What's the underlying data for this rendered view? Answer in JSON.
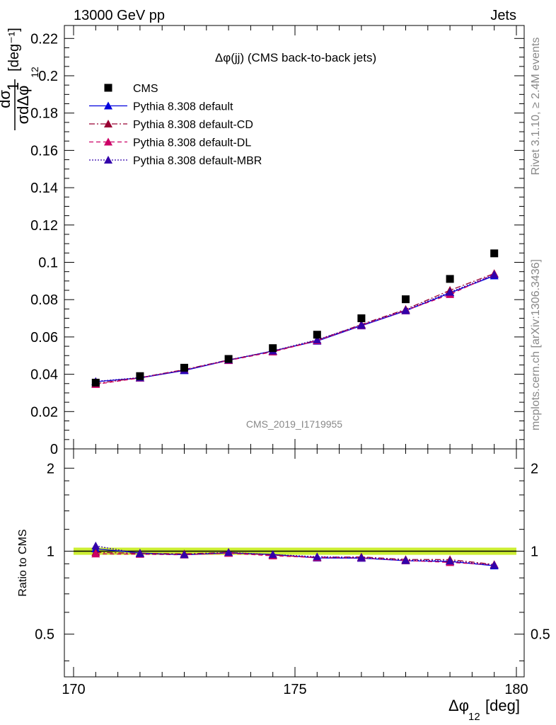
{
  "header": {
    "left": "13000 GeV pp",
    "right": "Jets"
  },
  "side_labels": {
    "top": "Rivet 3.1.10, ≥ 2.4M events",
    "bottom": "mcplots.cern.ch [arXiv:1306.3436]"
  },
  "watermark": "CMS_2019_I1719955",
  "chart_data": [
    {
      "type": "scatter",
      "title": "Δφ(jj) (CMS back-to-back jets)",
      "ylabel": {
        "prefix": "1",
        "numerator": "dσ",
        "denominator": "σdΔφ",
        "sub": "12",
        "unit": "[deg⁻¹]"
      },
      "xlim": [
        170,
        180
      ],
      "ylim": [
        0,
        0.227
      ],
      "yticks": [
        "0",
        "0.02",
        "0.04",
        "0.06",
        "0.08",
        "0.1",
        "0.12",
        "0.14",
        "0.16",
        "0.18",
        "0.2",
        "0.22"
      ],
      "x": [
        170.5,
        171.5,
        172.5,
        173.5,
        174.5,
        175.5,
        176.5,
        177.5,
        178.5,
        179.5
      ],
      "series": [
        {
          "name": "CMS",
          "color": "#000000",
          "marker": "square",
          "values": [
            0.0355,
            0.039,
            0.0435,
            0.0482,
            0.054,
            0.0612,
            0.07,
            0.0802,
            0.0911,
            0.1048
          ]
        },
        {
          "name": "Pythia 8.308 default",
          "color": "#0000dd",
          "line": "solid",
          "values": [
            0.036,
            0.038,
            0.042,
            0.0475,
            0.0525,
            0.0578,
            0.066,
            0.074,
            0.0836,
            0.0928
          ]
        },
        {
          "name": "Pythia 8.308 default-CD",
          "color": "#990033",
          "line": "dashdot",
          "values": [
            0.035,
            0.0382,
            0.0425,
            0.0477,
            0.0523,
            0.0582,
            0.0667,
            0.0748,
            0.085,
            0.094
          ]
        },
        {
          "name": "Pythia 8.308 default-DL",
          "color": "#cc0066",
          "line": "dashed",
          "values": [
            0.0346,
            0.038,
            0.0423,
            0.0474,
            0.052,
            0.058,
            0.0662,
            0.0742,
            0.0828,
            0.0936
          ]
        },
        {
          "name": "Pythia 8.308 default-MBR",
          "color": "#3300aa",
          "line": "dotted",
          "values": [
            0.0362,
            0.0382,
            0.0422,
            0.0477,
            0.0525,
            0.0585,
            0.0664,
            0.0744,
            0.084,
            0.0934
          ]
        }
      ]
    },
    {
      "type": "line",
      "ylabel": "Ratio to CMS",
      "xlabel": {
        "main": "Δφ",
        "sub": "12",
        "unit": "[deg]"
      },
      "xlim": [
        170,
        180
      ],
      "xticks": [
        "170",
        "175",
        "180"
      ],
      "ylim": [
        0.35,
        2.35
      ],
      "ylog": true,
      "yticks": [
        "0.5",
        "1",
        "2"
      ],
      "band": {
        "value": 1,
        "halfwidth": 0.03,
        "color": "#ccee33"
      },
      "x": [
        170.5,
        171.5,
        172.5,
        173.5,
        174.5,
        175.5,
        176.5,
        177.5,
        178.5,
        179.5
      ],
      "series": [
        {
          "name": "Pythia 8.308 default",
          "color": "#0000dd",
          "line": "solid",
          "values": [
            1.02,
            0.985,
            0.97,
            0.985,
            0.973,
            0.945,
            0.943,
            0.923,
            0.918,
            0.885
          ]
        },
        {
          "name": "Pythia 8.308 default-CD",
          "color": "#990033",
          "line": "dashdot",
          "values": [
            0.99,
            0.982,
            0.978,
            0.99,
            0.967,
            0.95,
            0.953,
            0.933,
            0.932,
            0.895
          ]
        },
        {
          "name": "Pythia 8.308 default-DL",
          "color": "#cc0066",
          "line": "dashed",
          "values": [
            0.978,
            0.975,
            0.97,
            0.983,
            0.962,
            0.948,
            0.946,
            0.925,
            0.91,
            0.892
          ]
        },
        {
          "name": "Pythia 8.308 default-MBR",
          "color": "#3300aa",
          "line": "dotted",
          "values": [
            1.045,
            0.98,
            0.972,
            0.99,
            0.972,
            0.955,
            0.948,
            0.928,
            0.922,
            0.89
          ]
        }
      ]
    }
  ]
}
